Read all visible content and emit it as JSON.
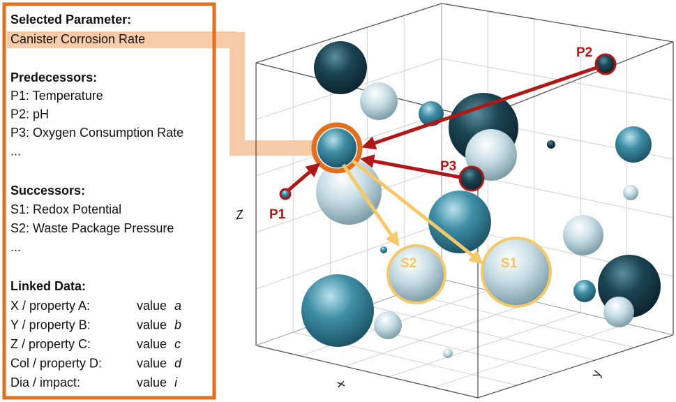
{
  "panel": {
    "selected_heading": "Selected Parameter:",
    "selected": "Canister Corrosion Rate",
    "predecessors_heading": "Predecessors:",
    "predecessors": [
      "P1: Temperature",
      "P2: pH",
      "P3: Oxygen Consumption Rate",
      "..."
    ],
    "successors_heading": "Successors:",
    "successors": [
      "S1: Redox Potential",
      "S2: Waste Package Pressure",
      "..."
    ],
    "linked_heading": "Linked Data:",
    "linked": [
      {
        "label": "X / property A:",
        "value": "value",
        "variable": "a"
      },
      {
        "label": "Y / property B:",
        "value": "value",
        "variable": "b"
      },
      {
        "label": "Z / property C:",
        "value": "value",
        "variable": "c"
      },
      {
        "label": "Col / property D:",
        "value": "value",
        "variable": "d"
      },
      {
        "label": "Dia / impact:",
        "value": "value",
        "variable": "i"
      }
    ]
  },
  "plot": {
    "axes": {
      "x": "x",
      "y": "y",
      "z": "Z"
    },
    "labels": {
      "p1": "P1",
      "p2": "P2",
      "p3": "P3",
      "s1": "S1",
      "s2": "S2"
    }
  }
}
